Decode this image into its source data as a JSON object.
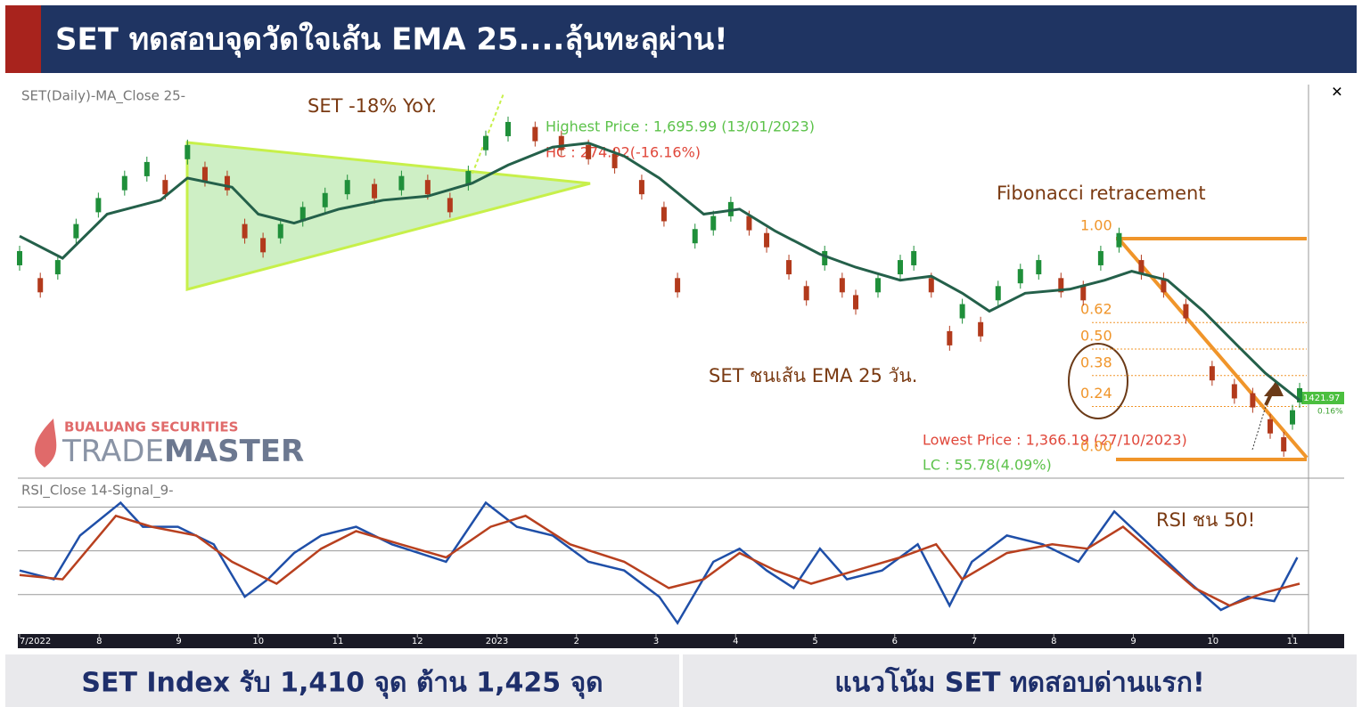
{
  "header": {
    "title": "SET ทดสอบจุดวัดใจเส้น EMA 25....ลุ้นทะลุผ่าน!"
  },
  "logo": {
    "company": "BUALUANG SECURITIES",
    "brand_light": "TRADE",
    "brand_bold": "MASTER"
  },
  "chart_data": [
    {
      "type": "candlestick-close",
      "title": "SET(Daily)-MA_Close 25-",
      "xlim": [
        0,
        16
      ],
      "xticks": [
        {
          "value": 0,
          "label": "7/2022"
        },
        {
          "value": 1,
          "label": "8"
        },
        {
          "value": 2,
          "label": "9"
        },
        {
          "value": 3,
          "label": "10"
        },
        {
          "value": 4,
          "label": "11"
        },
        {
          "value": 5,
          "label": "12"
        },
        {
          "value": 6,
          "label": "2023"
        },
        {
          "value": 7,
          "label": "2"
        },
        {
          "value": 8,
          "label": "3"
        },
        {
          "value": 9,
          "label": "4"
        },
        {
          "value": 10,
          "label": "5"
        },
        {
          "value": 11,
          "label": "6"
        },
        {
          "value": 12,
          "label": "7"
        },
        {
          "value": 13,
          "label": "8"
        },
        {
          "value": 14,
          "label": "9"
        },
        {
          "value": 15,
          "label": "10"
        },
        {
          "value": 16,
          "label": "11"
        }
      ],
      "ylim": [
        1345,
        1732
      ],
      "series": [
        {
          "name": "SET",
          "up_color": "#1f8f3a",
          "down_color": "#b23a1c",
          "x": [
            0,
            0.26,
            0.48,
            0.71,
            0.99,
            1.32,
            1.6,
            1.83,
            2.11,
            2.33,
            2.61,
            2.83,
            3.06,
            3.28,
            3.56,
            3.84,
            4.12,
            4.46,
            4.8,
            5.13,
            5.41,
            5.64,
            5.86,
            6.14,
            6.48,
            6.81,
            7.15,
            7.48,
            7.82,
            8.1,
            8.27,
            8.49,
            8.72,
            8.94,
            9.17,
            9.39,
            9.67,
            9.89,
            10.12,
            10.34,
            10.51,
            10.79,
            11.07,
            11.24,
            11.46,
            11.69,
            11.85,
            12.08,
            12.3,
            12.58,
            12.81,
            13.09,
            13.37,
            13.59,
            13.82,
            14.1,
            14.38,
            14.66,
            14.99,
            15.27,
            15.5,
            15.72,
            15.89,
            16,
            16.09
          ],
          "values": [
            1563,
            1536,
            1554,
            1590,
            1616,
            1638,
            1652,
            1634,
            1669,
            1647,
            1638,
            1590,
            1576,
            1590,
            1607,
            1621,
            1634,
            1630,
            1638,
            1634,
            1616,
            1643,
            1678,
            1692,
            1687,
            1678,
            1669,
            1660,
            1634,
            1607,
            1536,
            1585,
            1598,
            1612,
            1598,
            1581,
            1554,
            1528,
            1563,
            1536,
            1519,
            1536,
            1554,
            1563,
            1536,
            1483,
            1510,
            1492,
            1528,
            1545,
            1554,
            1536,
            1528,
            1563,
            1581,
            1554,
            1536,
            1510,
            1448,
            1430,
            1421,
            1395,
            1377,
            1404,
            1426
          ]
        },
        {
          "name": "MA_Close 25",
          "color": "#24604a",
          "x": [
            0,
            0.54,
            1.1,
            1.77,
            2.11,
            2.67,
            3.0,
            3.45,
            4.01,
            4.57,
            5.13,
            5.69,
            6.14,
            6.7,
            7.15,
            7.6,
            8.04,
            8.6,
            9.05,
            9.5,
            10.06,
            10.51,
            11.07,
            11.46,
            11.85,
            12.19,
            12.64,
            13.2,
            13.64,
            13.98,
            14.43,
            14.88,
            15.33,
            15.66,
            16.09
          ],
          "values": [
            1585,
            1563,
            1607,
            1621,
            1643,
            1634,
            1607,
            1598,
            1612,
            1621,
            1625,
            1638,
            1656,
            1674,
            1678,
            1665,
            1643,
            1607,
            1612,
            1590,
            1567,
            1554,
            1541,
            1545,
            1528,
            1510,
            1528,
            1532,
            1541,
            1550,
            1541,
            1510,
            1474,
            1448,
            1421
          ]
        }
      ],
      "annotations": {
        "yoy": "SET -18% YoY.",
        "highest": "Highest Price : 1,695.99 (13/01/2023)",
        "hc": "HC : 274.02(-16.16%)",
        "ema_touch": "SET ชนเส้น EMA 25 วัน.",
        "lowest": "Lowest Price : 1,366.19 (27/10/2023)",
        "lc": "LC : 55.78(4.09%)",
        "last_price": "1421.97",
        "last_change": "0.16%"
      },
      "fibonacci": {
        "title": "Fibonacci retracement",
        "levels": [
          {
            "value": 1,
            "label": "1.00"
          },
          0.62,
          {
            "value": 0.5,
            "label": "0.50"
          },
          0.38,
          0.24,
          {
            "value": 0,
            "label": "0.00"
          }
        ],
        "color": "#f0952a"
      }
    },
    {
      "type": "line",
      "title": "RSI_Close 14-Signal_9-",
      "xlim": [
        0,
        16
      ],
      "ylim": [
        12,
        82
      ],
      "yticks": [
        30,
        50,
        70
      ],
      "annotation": "RSI ชน 50!",
      "series": [
        {
          "name": "RSI_Close 14",
          "color": "#1f4fa8",
          "x": [
            0,
            0.43,
            0.76,
            1.27,
            1.55,
            1.99,
            2.44,
            2.83,
            3.12,
            3.45,
            3.79,
            4.23,
            4.68,
            5.02,
            5.36,
            5.86,
            6.25,
            6.7,
            7.15,
            7.6,
            8.04,
            8.27,
            8.72,
            9.05,
            9.39,
            9.73,
            10.06,
            10.4,
            10.84,
            11.29,
            11.69,
            11.97,
            12.41,
            12.86,
            13.31,
            13.76,
            14.2,
            14.66,
            15.1,
            15.44,
            15.77,
            16.06
          ],
          "values": [
            41,
            37,
            57,
            72,
            61,
            61,
            53,
            29,
            37,
            49,
            57,
            61,
            53,
            49,
            45,
            72,
            61,
            57,
            45,
            41,
            29,
            17,
            45,
            51,
            41,
            33,
            51,
            37,
            41,
            53,
            25,
            45,
            57,
            53,
            45,
            68,
            53,
            37,
            23,
            29,
            27,
            47
          ]
        },
        {
          "name": "Signal_9",
          "color": "#b8401f",
          "x": [
            0,
            0.54,
            1.21,
            1.66,
            2.22,
            2.67,
            3.23,
            3.79,
            4.23,
            4.79,
            5.36,
            5.92,
            6.36,
            6.92,
            7.6,
            8.16,
            8.6,
            9.05,
            9.5,
            9.95,
            10.51,
            11.07,
            11.52,
            11.85,
            12.41,
            12.98,
            13.42,
            13.87,
            14.32,
            14.77,
            15.21,
            15.66,
            16.09
          ],
          "values": [
            39,
            37,
            66,
            61,
            57,
            45,
            35,
            51,
            59,
            53,
            47,
            61,
            66,
            53,
            45,
            33,
            37,
            49,
            41,
            35,
            41,
            47,
            53,
            37,
            49,
            53,
            51,
            61,
            47,
            33,
            25,
            31,
            35
          ]
        }
      ]
    }
  ],
  "footer": {
    "left": "SET Index รับ 1,410 จุด ต้าน 1,425 จุด",
    "right": "แนวโน้ม SET ทดสอบด่านแรก!"
  }
}
